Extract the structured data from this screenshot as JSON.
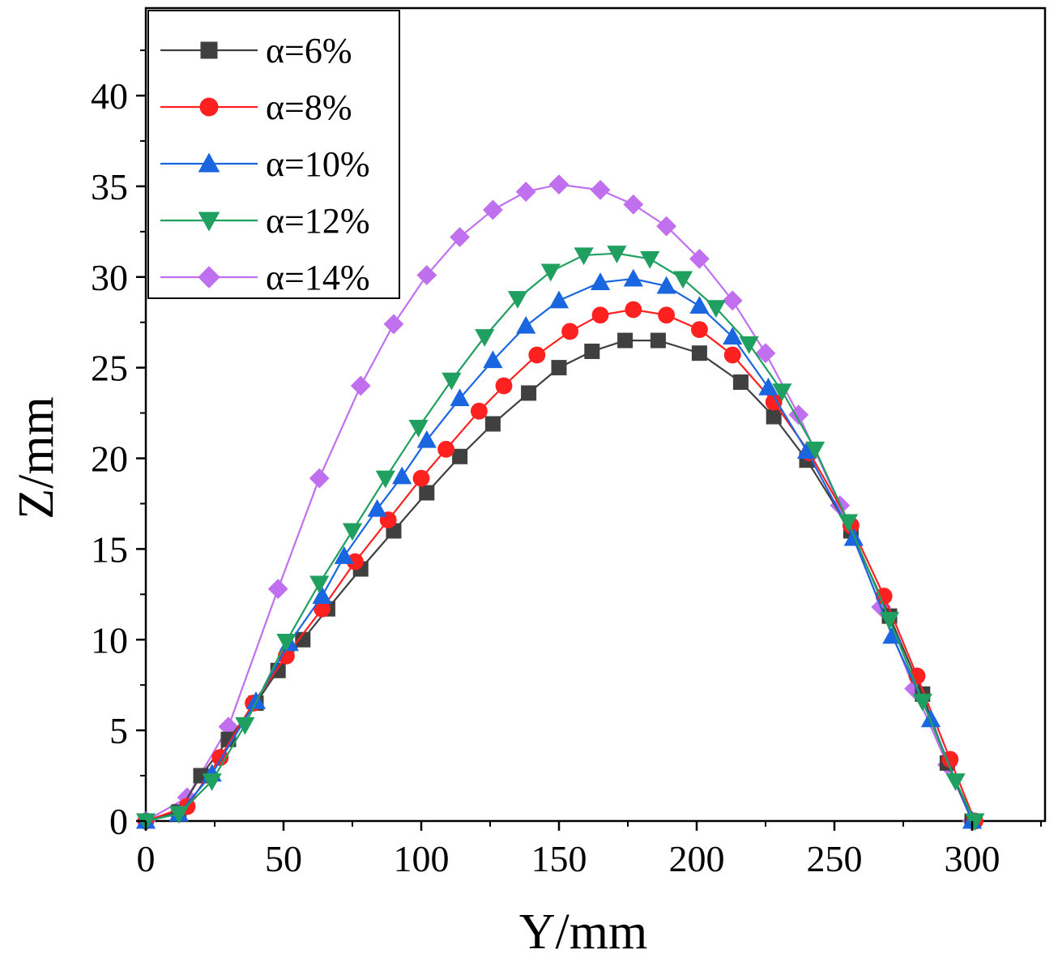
{
  "chart_data": {
    "type": "line",
    "title": "",
    "xlabel": "Y/mm",
    "ylabel": "Z/mm",
    "xlim": [
      0,
      325
    ],
    "ylim": [
      0,
      43
    ],
    "xticks": [
      0,
      50,
      100,
      150,
      200,
      250,
      300
    ],
    "yticks": [
      0,
      5,
      10,
      15,
      20,
      25,
      30,
      35,
      40
    ],
    "xtick_labels": [
      "0",
      "50",
      "100",
      "150",
      "200",
      "250",
      "300"
    ],
    "ytick_labels": [
      "0",
      "5",
      "10",
      "15",
      "20",
      "25",
      "30",
      "35",
      "40"
    ],
    "grid": false,
    "legend_position": "top-left",
    "series": [
      {
        "name": "α=6%",
        "color": "#404040",
        "marker": "square",
        "x": [
          0,
          12,
          20,
          30,
          40,
          48,
          57,
          66,
          78,
          90,
          102,
          114,
          126,
          139,
          150,
          162,
          174,
          186,
          201,
          216,
          228,
          240,
          256,
          270,
          282,
          291,
          300
        ],
        "y": [
          0,
          0.5,
          2.5,
          4.5,
          6.5,
          8.3,
          10.0,
          11.7,
          13.9,
          16.0,
          18.1,
          20.1,
          21.9,
          23.6,
          25.0,
          25.9,
          26.5,
          26.5,
          25.8,
          24.2,
          22.3,
          19.9,
          16.0,
          11.3,
          7.0,
          3.2,
          0
        ]
      },
      {
        "name": "α=8%",
        "color": "#ff2020",
        "marker": "circle",
        "x": [
          0,
          15,
          27,
          39,
          51,
          64,
          76,
          88,
          100,
          109,
          121,
          130,
          142,
          154,
          165,
          177,
          189,
          201,
          213,
          228,
          241,
          256,
          268,
          280,
          292,
          301
        ],
        "y": [
          0,
          0.8,
          3.5,
          6.5,
          9.1,
          11.7,
          14.3,
          16.6,
          18.9,
          20.5,
          22.6,
          24.0,
          25.7,
          27.0,
          27.9,
          28.2,
          27.9,
          27.1,
          25.7,
          23.1,
          20.3,
          16.3,
          12.4,
          8.0,
          3.4,
          0
        ]
      },
      {
        "name": "α=10%",
        "color": "#1a66e0",
        "marker": "triangle-up",
        "x": [
          0,
          12,
          24,
          40,
          52,
          64,
          72,
          84,
          93,
          102,
          114,
          126,
          138,
          150,
          165,
          177,
          189,
          201,
          213,
          226,
          240,
          257,
          271,
          285,
          300
        ],
        "y": [
          0,
          0.4,
          2.6,
          6.6,
          9.8,
          12.4,
          14.6,
          17.2,
          19.0,
          21.0,
          23.3,
          25.4,
          27.3,
          28.7,
          29.7,
          29.9,
          29.5,
          28.4,
          26.7,
          23.9,
          20.4,
          15.6,
          10.2,
          5.6,
          0
        ]
      },
      {
        "name": "α=12%",
        "color": "#20a060",
        "marker": "triangle-down",
        "x": [
          0,
          12,
          24,
          36,
          51,
          63,
          75,
          87,
          99,
          111,
          123,
          135,
          147,
          159,
          171,
          183,
          195,
          207,
          219,
          231,
          243,
          255,
          270,
          282,
          294,
          301
        ],
        "y": [
          0,
          0.4,
          2.2,
          5.3,
          9.9,
          13.1,
          16.0,
          18.9,
          21.7,
          24.3,
          26.7,
          28.8,
          30.3,
          31.2,
          31.3,
          31.0,
          29.9,
          28.3,
          26.3,
          23.7,
          20.5,
          16.5,
          11.1,
          6.6,
          2.2,
          0
        ]
      },
      {
        "name": "α=14%",
        "color": "#c070ee",
        "marker": "diamond",
        "x": [
          0,
          15,
          30,
          48,
          63,
          78,
          90,
          102,
          114,
          126,
          138,
          150,
          165,
          177,
          189,
          201,
          213,
          225,
          237,
          252,
          267,
          279,
          291,
          300
        ],
        "y": [
          0,
          1.3,
          5.2,
          12.8,
          18.9,
          24.0,
          27.4,
          30.1,
          32.2,
          33.7,
          34.7,
          35.1,
          34.8,
          34.0,
          32.8,
          31.0,
          28.7,
          25.8,
          22.4,
          17.4,
          11.8,
          7.3,
          3.1,
          0
        ]
      }
    ]
  }
}
